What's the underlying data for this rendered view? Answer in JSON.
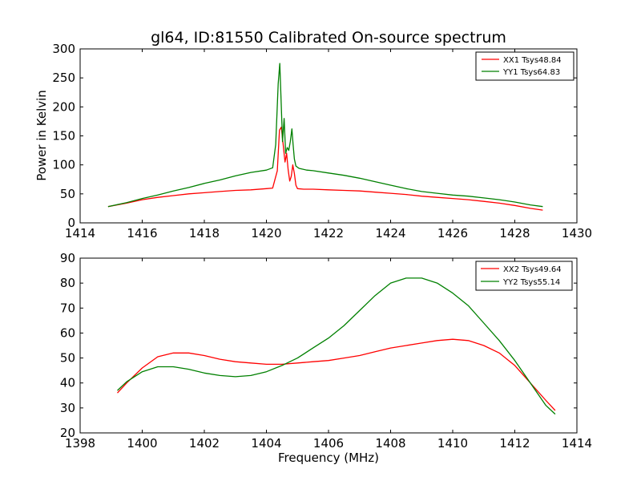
{
  "chart_data": [
    {
      "type": "line",
      "title": "gl64, ID:81550 Calibrated On-source spectrum",
      "xlabel": "",
      "ylabel": "Power in Kelvin",
      "xlim": [
        1414,
        1430
      ],
      "ylim": [
        0,
        300
      ],
      "xticks": [
        "1414",
        "1416",
        "1418",
        "1420",
        "1422",
        "1424",
        "1426",
        "1428",
        "1430"
      ],
      "yticks": [
        "0",
        "50",
        "100",
        "150",
        "200",
        "250",
        "300"
      ],
      "grid": false,
      "legend_position": "top-right",
      "series": [
        {
          "name": "XX1 Tsys48.84",
          "color": "#ff0000",
          "x": [
            1414.9,
            1415.5,
            1416.0,
            1416.5,
            1417.0,
            1417.5,
            1418.0,
            1418.5,
            1419.0,
            1419.5,
            1420.0,
            1420.2,
            1420.35,
            1420.42,
            1420.48,
            1420.55,
            1420.6,
            1420.65,
            1420.7,
            1420.75,
            1420.8,
            1420.85,
            1420.9,
            1420.95,
            1421.0,
            1421.2,
            1421.5,
            1422.0,
            1422.5,
            1423.0,
            1423.5,
            1424.0,
            1424.5,
            1425.0,
            1425.5,
            1426.0,
            1426.5,
            1427.0,
            1427.5,
            1428.0,
            1428.5,
            1428.9
          ],
          "y": [
            28,
            34,
            40,
            44,
            47,
            50,
            52,
            54,
            56,
            57,
            59,
            60,
            90,
            160,
            165,
            130,
            105,
            120,
            92,
            72,
            80,
            100,
            85,
            65,
            59,
            58,
            58,
            57,
            56,
            55,
            53,
            51,
            49,
            46,
            44,
            42,
            40,
            37,
            34,
            30,
            25,
            22
          ]
        },
        {
          "name": "YY1 Tsys64.83",
          "color": "#008000",
          "x": [
            1414.9,
            1415.5,
            1416.0,
            1416.5,
            1417.0,
            1417.5,
            1418.0,
            1418.5,
            1419.0,
            1419.5,
            1420.0,
            1420.2,
            1420.3,
            1420.38,
            1420.43,
            1420.48,
            1420.52,
            1420.57,
            1420.62,
            1420.67,
            1420.72,
            1420.77,
            1420.82,
            1420.86,
            1420.9,
            1420.95,
            1421.05,
            1421.3,
            1421.5,
            1422.0,
            1422.5,
            1423.0,
            1423.5,
            1424.0,
            1424.5,
            1425.0,
            1425.5,
            1426.0,
            1426.5,
            1427.0,
            1427.5,
            1428.0,
            1428.5,
            1428.9
          ],
          "y": [
            28,
            35,
            42,
            48,
            55,
            61,
            68,
            74,
            81,
            87,
            91,
            95,
            135,
            240,
            275,
            200,
            140,
            180,
            120,
            130,
            125,
            140,
            162,
            135,
            110,
            98,
            94,
            91,
            90,
            86,
            82,
            77,
            71,
            65,
            59,
            54,
            51,
            48,
            46,
            43,
            40,
            36,
            31,
            28
          ]
        }
      ]
    },
    {
      "type": "line",
      "title": "",
      "xlabel": "Frequency (MHz)",
      "ylabel": "",
      "xlim": [
        1398,
        1414
      ],
      "ylim": [
        20,
        90
      ],
      "xticks": [
        "1398",
        "1400",
        "1402",
        "1404",
        "1406",
        "1408",
        "1410",
        "1412",
        "1414"
      ],
      "yticks": [
        "20",
        "30",
        "40",
        "50",
        "60",
        "70",
        "80",
        "90"
      ],
      "grid": false,
      "legend_position": "top-right",
      "series": [
        {
          "name": "XX2 Tsys49.64",
          "color": "#ff0000",
          "x": [
            1399.2,
            1399.5,
            1400.0,
            1400.5,
            1401.0,
            1401.5,
            1402.0,
            1402.5,
            1403.0,
            1403.5,
            1404.0,
            1404.5,
            1405.0,
            1405.5,
            1406.0,
            1406.5,
            1407.0,
            1407.5,
            1408.0,
            1408.5,
            1409.0,
            1409.5,
            1410.0,
            1410.5,
            1411.0,
            1411.5,
            1412.0,
            1412.5,
            1413.0,
            1413.3
          ],
          "y": [
            36,
            40,
            46,
            50.5,
            52,
            52,
            51,
            49.5,
            48.5,
            48,
            47.5,
            47.5,
            48,
            48.5,
            49,
            50,
            51,
            52.5,
            54,
            55,
            56,
            57,
            57.5,
            57,
            55,
            52,
            47,
            40,
            33,
            29
          ]
        },
        {
          "name": "YY2 Tsys55.14",
          "color": "#008000",
          "x": [
            1399.2,
            1399.5,
            1400.0,
            1400.5,
            1401.0,
            1401.5,
            1402.0,
            1402.5,
            1403.0,
            1403.5,
            1404.0,
            1404.5,
            1405.0,
            1405.5,
            1406.0,
            1406.5,
            1407.0,
            1407.5,
            1408.0,
            1408.5,
            1409.0,
            1409.5,
            1410.0,
            1410.5,
            1411.0,
            1411.5,
            1412.0,
            1412.5,
            1413.0,
            1413.3
          ],
          "y": [
            37,
            40.5,
            44.5,
            46.5,
            46.5,
            45.5,
            44,
            43,
            42.5,
            43,
            44.5,
            47,
            50,
            54,
            58,
            63,
            69,
            75,
            80,
            82,
            82,
            80,
            76,
            71,
            64,
            57,
            49,
            40,
            31,
            27.5
          ]
        }
      ]
    }
  ]
}
